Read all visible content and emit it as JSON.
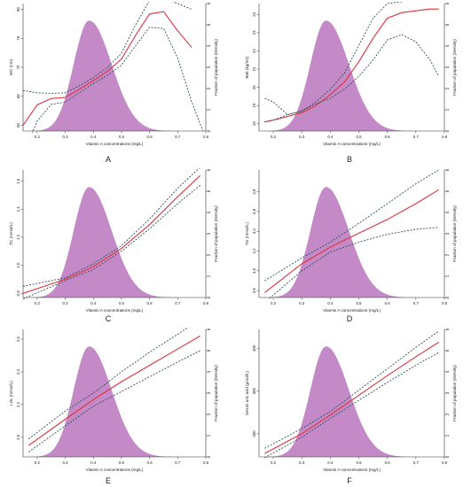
{
  "chart_data": [
    {
      "panel": "A",
      "type": "line",
      "xlabel": "Vitamin A concentrations (mg/L)",
      "ylabel": "WC (cm)",
      "y2label": "Fraction of population (Density)",
      "xlim": [
        0.15,
        0.8
      ],
      "ylim": [
        59,
        81
      ],
      "y2lim": [
        0,
        6
      ],
      "xticks": [
        0.2,
        0.3,
        0.4,
        0.5,
        0.6,
        0.7,
        0.8
      ],
      "yticks": [
        60,
        65,
        70,
        75,
        80
      ],
      "y2ticks": [
        0,
        1,
        2,
        3,
        4,
        5,
        6
      ],
      "density": {
        "peak": 0.385,
        "sdl": 0.055,
        "sdr": 0.08,
        "height": 5.2
      },
      "series": [
        {
          "role": "fit",
          "x": [
            0.15,
            0.2,
            0.25,
            0.3,
            0.35,
            0.4,
            0.45,
            0.5,
            0.55,
            0.6,
            0.65,
            0.7,
            0.75
          ],
          "y": [
            60,
            63.5,
            64.6,
            64.8,
            66.2,
            67.7,
            69.3,
            71.4,
            75.5,
            79.2,
            79.6,
            76.3,
            73.4
          ]
        },
        {
          "role": "upper",
          "x": [
            0.15,
            0.2,
            0.25,
            0.3,
            0.35,
            0.4,
            0.45,
            0.5,
            0.55,
            0.6,
            0.65,
            0.7,
            0.75
          ],
          "y": [
            66,
            65.6,
            65.5,
            65.6,
            66.8,
            68.2,
            70,
            72.4,
            77.3,
            81.5,
            82,
            81,
            80
          ]
        },
        {
          "role": "lower",
          "x": [
            0.15,
            0.2,
            0.25,
            0.3,
            0.35,
            0.4,
            0.45,
            0.5,
            0.55,
            0.6,
            0.65,
            0.7,
            0.75,
            0.79
          ],
          "y": [
            55,
            60.7,
            63.6,
            64,
            65.6,
            67.2,
            68.6,
            70.4,
            73.7,
            76.9,
            76.7,
            71.6,
            64,
            59
          ]
        }
      ]
    },
    {
      "panel": "B",
      "type": "line",
      "xlabel": "Vitamin A concentrations (mg/L)",
      "ylabel": "BMI (kg/m2)",
      "y2label": "Fraction of population (Density)",
      "xlim": [
        0.15,
        0.8
      ],
      "ylim": [
        17.6,
        24.6
      ],
      "y2lim": [
        0,
        6
      ],
      "xticks": [
        0.2,
        0.3,
        0.4,
        0.5,
        0.6,
        0.7,
        0.8
      ],
      "yticks": [
        18,
        19,
        20,
        21,
        22,
        23,
        24
      ],
      "y2ticks": [
        0,
        1,
        2,
        3,
        4,
        5,
        6
      ],
      "density": {
        "peak": 0.385,
        "sdl": 0.055,
        "sdr": 0.08,
        "height": 5.2
      },
      "series": [
        {
          "role": "fit",
          "x": [
            0.17,
            0.2,
            0.25,
            0.3,
            0.35,
            0.4,
            0.45,
            0.5,
            0.55,
            0.6,
            0.65,
            0.7,
            0.75,
            0.78
          ],
          "y": [
            18.1,
            18.2,
            18.4,
            18.6,
            19,
            19.6,
            20.3,
            21.4,
            22.7,
            23.8,
            24.1,
            24.2,
            24.3,
            24.3
          ]
        },
        {
          "role": "upper",
          "x": [
            0.17,
            0.2,
            0.25,
            0.3,
            0.35,
            0.4,
            0.45,
            0.5,
            0.55,
            0.6,
            0.65
          ],
          "y": [
            18.1,
            18.2,
            18.5,
            18.7,
            19.2,
            19.9,
            20.8,
            22.3,
            23.8,
            24.6,
            24.7
          ]
        },
        {
          "role": "lower",
          "x": [
            0.17,
            0.2,
            0.25,
            0.3,
            0.35,
            0.4,
            0.45,
            0.5,
            0.55,
            0.6,
            0.65,
            0.7,
            0.75,
            0.78
          ],
          "y": [
            19.4,
            19.2,
            18.5,
            18.7,
            19.1,
            19.4,
            19.9,
            20.6,
            21.5,
            22.6,
            22.9,
            22.5,
            21.5,
            20.6
          ]
        }
      ]
    },
    {
      "panel": "C",
      "type": "line",
      "xlabel": "Vitamin A concentrations (mg/L)",
      "ylabel": "TC (mmol/L)",
      "y2label": "Fraction of population (Density)",
      "xlim": [
        0.15,
        0.8
      ],
      "ylim": [
        0.77,
        1.68
      ],
      "y2lim": [
        0,
        6
      ],
      "xticks": [
        0.2,
        0.3,
        0.4,
        0.5,
        0.6,
        0.7,
        0.8
      ],
      "yticks": [
        0.8,
        1.0,
        1.2,
        1.4,
        1.6
      ],
      "y2ticks": [
        0,
        1,
        2,
        3,
        4,
        5,
        6
      ],
      "density": {
        "peak": 0.385,
        "sdl": 0.055,
        "sdr": 0.08,
        "height": 5.2
      },
      "series": [
        {
          "role": "fit",
          "x": [
            0.15,
            0.3,
            0.4,
            0.5,
            0.6,
            0.7,
            0.78
          ],
          "y": [
            0.8,
            0.9,
            0.99,
            1.12,
            1.29,
            1.49,
            1.64
          ]
        },
        {
          "role": "upper",
          "x": [
            0.15,
            0.3,
            0.4,
            0.5,
            0.6,
            0.7,
            0.78
          ],
          "y": [
            0.85,
            0.91,
            1.01,
            1.14,
            1.33,
            1.55,
            1.7
          ]
        },
        {
          "role": "lower",
          "x": [
            0.15,
            0.3,
            0.4,
            0.5,
            0.6,
            0.7,
            0.78
          ],
          "y": [
            0.76,
            0.89,
            0.97,
            1.1,
            1.26,
            1.44,
            1.57
          ]
        }
      ]
    },
    {
      "panel": "D",
      "type": "line",
      "xlabel": "Vitamin A concentrations (mg/L)",
      "ylabel": "TG (mmol/L)",
      "y2label": "Fraction of population (Density)",
      "xlim": [
        0.15,
        0.8
      ],
      "ylim": [
        3.73,
        5.02
      ],
      "y2lim": [
        0,
        6
      ],
      "xticks": [
        0.2,
        0.3,
        0.4,
        0.5,
        0.6,
        0.7,
        0.8
      ],
      "yticks": [
        3.8,
        4.0,
        4.2,
        4.4,
        4.6,
        4.8
      ],
      "y2ticks": [
        0,
        1,
        2,
        3,
        4,
        5,
        6
      ],
      "density": {
        "peak": 0.385,
        "sdl": 0.055,
        "sdr": 0.08,
        "height": 5.2
      },
      "series": [
        {
          "role": "fit",
          "x": [
            0.17,
            0.3,
            0.4,
            0.5,
            0.6,
            0.7,
            0.78
          ],
          "y": [
            3.78,
            4.07,
            4.24,
            4.38,
            4.52,
            4.68,
            4.82
          ]
        },
        {
          "role": "upper",
          "x": [
            0.17,
            0.3,
            0.4,
            0.5,
            0.6,
            0.7,
            0.78
          ],
          "y": [
            3.9,
            4.13,
            4.29,
            4.48,
            4.68,
            4.88,
            5.02
          ]
        },
        {
          "role": "lower",
          "x": [
            0.17,
            0.3,
            0.4,
            0.5,
            0.6,
            0.7,
            0.78
          ],
          "y": [
            3.68,
            4.0,
            4.19,
            4.29,
            4.37,
            4.42,
            4.44
          ]
        }
      ]
    },
    {
      "panel": "E",
      "type": "line",
      "xlabel": "Vitamin A concentrations (mg/L)",
      "ylabel": "LDL (mmol/L)",
      "y2label": "Fraction of population (Density)",
      "xlim": [
        0.15,
        0.8
      ],
      "ylim": [
        1.88,
        2.66
      ],
      "y2lim": [
        0,
        6
      ],
      "xticks": [
        0.2,
        0.3,
        0.4,
        0.5,
        0.6,
        0.7,
        0.8
      ],
      "yticks": [
        2.0,
        2.2,
        2.4,
        2.6
      ],
      "y2ticks": [
        0,
        1,
        2,
        3,
        4,
        5,
        6
      ],
      "density": {
        "peak": 0.385,
        "sdl": 0.055,
        "sdr": 0.08,
        "height": 5.2
      },
      "series": [
        {
          "role": "fit",
          "x": [
            0.17,
            0.3,
            0.4,
            0.5,
            0.6,
            0.7,
            0.78
          ],
          "y": [
            1.95,
            2.11,
            2.23,
            2.34,
            2.44,
            2.54,
            2.62
          ]
        },
        {
          "role": "upper",
          "x": [
            0.17,
            0.3,
            0.4,
            0.5,
            0.6,
            0.7,
            0.78
          ],
          "y": [
            1.99,
            2.16,
            2.27,
            2.4,
            2.52,
            2.63,
            2.72
          ]
        },
        {
          "role": "lower",
          "x": [
            0.17,
            0.3,
            0.4,
            0.5,
            0.6,
            0.7,
            0.78
          ],
          "y": [
            1.91,
            2.07,
            2.19,
            2.28,
            2.37,
            2.46,
            2.53
          ]
        }
      ]
    },
    {
      "panel": "F",
      "type": "line",
      "xlabel": "Vitamin A concentrations (mg/L)",
      "ylabel": "Serum uric acid (μmol/L)",
      "y2label": "Fraction of population (Density)",
      "xlim": [
        0.15,
        0.8
      ],
      "ylim": [
        273,
        422
      ],
      "y2lim": [
        0,
        6
      ],
      "xticks": [
        0.2,
        0.3,
        0.4,
        0.5,
        0.6,
        0.7,
        0.8
      ],
      "yticks": [
        300,
        350,
        400
      ],
      "y2ticks": [
        0,
        1,
        2,
        3,
        4,
        5,
        6
      ],
      "density": {
        "peak": 0.385,
        "sdl": 0.055,
        "sdr": 0.08,
        "height": 5.2
      },
      "series": [
        {
          "role": "fit",
          "x": [
            0.17,
            0.3,
            0.4,
            0.5,
            0.6,
            0.7,
            0.78
          ],
          "y": [
            277,
            300,
            322,
            345,
            368,
            390,
            407
          ]
        },
        {
          "role": "upper",
          "x": [
            0.17,
            0.3,
            0.4,
            0.5,
            0.6,
            0.7,
            0.78
          ],
          "y": [
            283,
            306,
            326,
            351,
            376,
            401,
            420
          ]
        },
        {
          "role": "lower",
          "x": [
            0.17,
            0.3,
            0.4,
            0.5,
            0.6,
            0.7,
            0.78
          ],
          "y": [
            272,
            296,
            318,
            339,
            360,
            380,
            395
          ]
        }
      ]
    }
  ],
  "colors": {
    "density_fill": "#c48ac8",
    "fit_line": "#e0313a",
    "ci_line": "#2f4f5a",
    "axis": "#333333"
  }
}
